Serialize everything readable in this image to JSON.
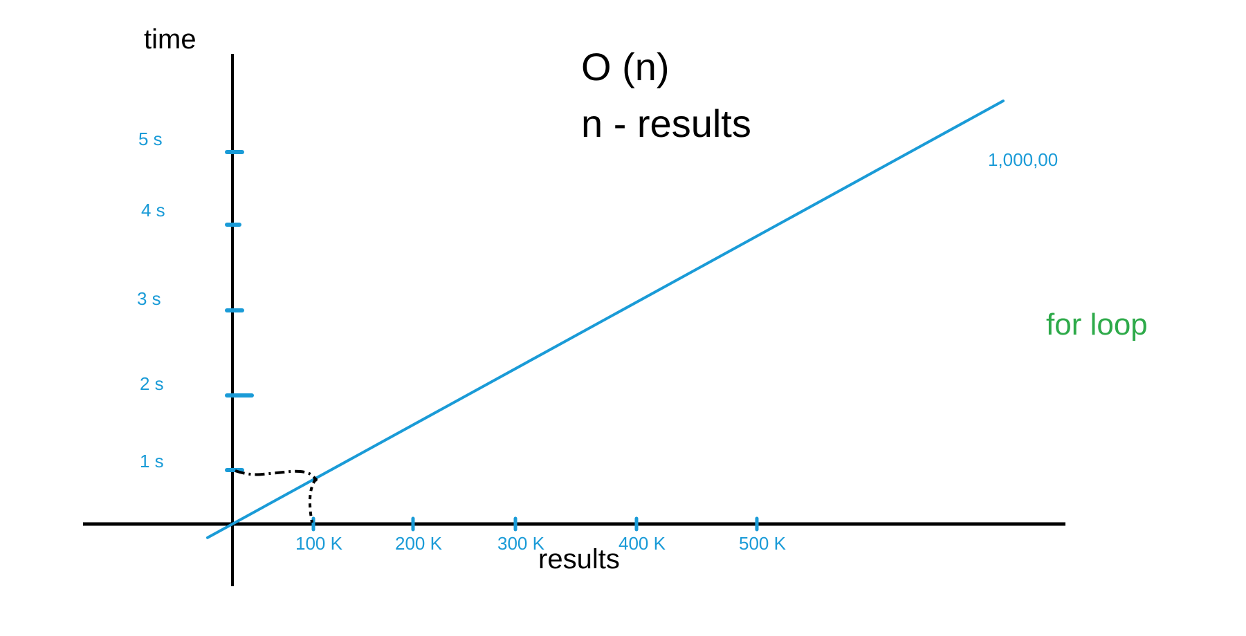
{
  "chart_data": {
    "type": "line",
    "title": "O (n)",
    "subtitle": "n - results",
    "xlabel": "results",
    "ylabel": "time",
    "x_ticks": [
      {
        "value": 100,
        "label": "100 K"
      },
      {
        "value": 200,
        "label": "200 K"
      },
      {
        "value": 300,
        "label": "300 K"
      },
      {
        "value": 400,
        "label": "400 K"
      },
      {
        "value": 500,
        "label": "500 K"
      }
    ],
    "y_ticks": [
      {
        "value": 1,
        "label": "1 s"
      },
      {
        "value": 2,
        "label": "2 s"
      },
      {
        "value": 3,
        "label": "3 s"
      },
      {
        "value": 4,
        "label": "4 s"
      },
      {
        "value": 5,
        "label": "5 s"
      }
    ],
    "series": [
      {
        "x": [
          0,
          1000
        ],
        "y": [
          0,
          5.0
        ]
      }
    ],
    "annotations": [
      {
        "text": "1,000,00"
      },
      {
        "text": "for loop"
      }
    ],
    "reference_point": {
      "x": 100,
      "y": 0.6
    },
    "line_color": "#1a9bd7",
    "axis_color": "#000000",
    "annotation_color": "#2eaa4a"
  }
}
